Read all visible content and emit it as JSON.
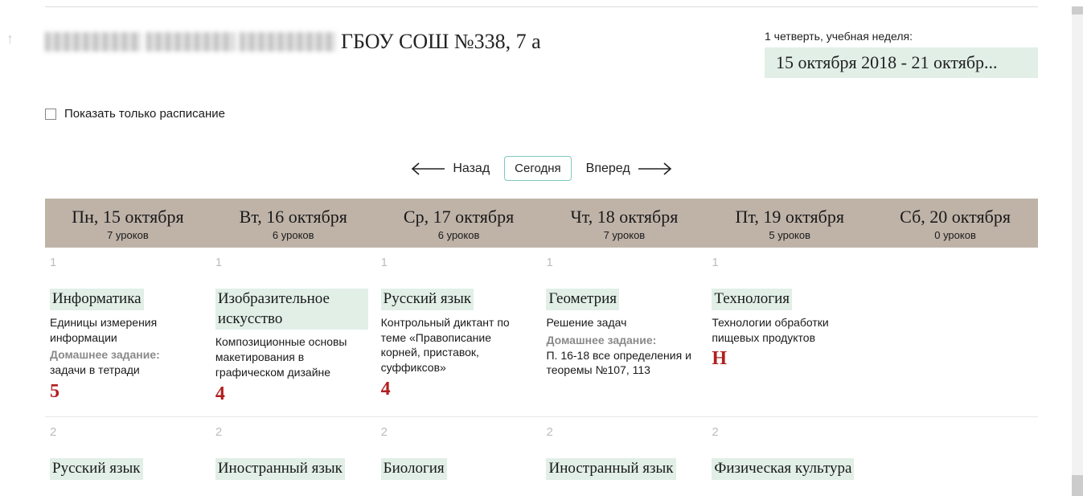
{
  "colors": {
    "subject_bg": "#e1efe7",
    "header_band": "#bfb3a8",
    "grade_red": "#b21f1f",
    "muted": "#8a8a8a"
  },
  "header": {
    "school_text": "ГБОУ СОШ №338, 7 а",
    "week_label": "1 четверть, учебная неделя:",
    "week_range": "15 октября 2018 - 21 октябр..."
  },
  "controls": {
    "show_schedule_only": "Показать только расписание",
    "back": "Назад",
    "today": "Сегодня",
    "forward": "Вперед"
  },
  "days": [
    {
      "title": "Пн, 15 октября",
      "count": "7 уроков"
    },
    {
      "title": "Вт, 16 октября",
      "count": "6 уроков"
    },
    {
      "title": "Ср, 17 октября",
      "count": "6 уроков"
    },
    {
      "title": "Чт, 18 октября",
      "count": "7 уроков"
    },
    {
      "title": "Пт, 19 октября",
      "count": "5 уроков"
    },
    {
      "title": "Сб, 20 октября",
      "count": "0 уроков"
    }
  ],
  "row1": [
    {
      "num": "1",
      "subject": "Информатика",
      "topic": "Единицы измерения информации",
      "hw_label": "Домашнее задание:",
      "hw": "задачи в тетради",
      "grade": "5",
      "grade_color": "#b21f1f"
    },
    {
      "num": "1",
      "subject": "Изобразительное искусство",
      "topic": "Композиционные основы макетирования в графическом дизайне",
      "grade": "4",
      "grade_color": "#b21f1f"
    },
    {
      "num": "1",
      "subject": "Русский язык",
      "topic": "Контрольный диктант по теме «Правописание корней, приставок, суффиксов»",
      "grade": "4",
      "grade_color": "#b21f1f"
    },
    {
      "num": "1",
      "subject": "Геометрия",
      "topic": "Решение задач",
      "hw_label": "Домашнее задание:",
      "hw": "П. 16-18 все определения и теоремы №107, 113"
    },
    {
      "num": "1",
      "subject": "Технология",
      "topic": "Технологии обработки пищевых продуктов",
      "grade": "Н",
      "grade_color": "#b21f1f"
    },
    {
      "empty": true
    }
  ],
  "row2": [
    {
      "num": "2",
      "subject": "Русский язык"
    },
    {
      "num": "2",
      "subject": "Иностранный язык"
    },
    {
      "num": "2",
      "subject": "Биология"
    },
    {
      "num": "2",
      "subject": "Иностранный язык"
    },
    {
      "num": "2",
      "subject": "Физическая культура"
    },
    {
      "empty": true
    }
  ]
}
